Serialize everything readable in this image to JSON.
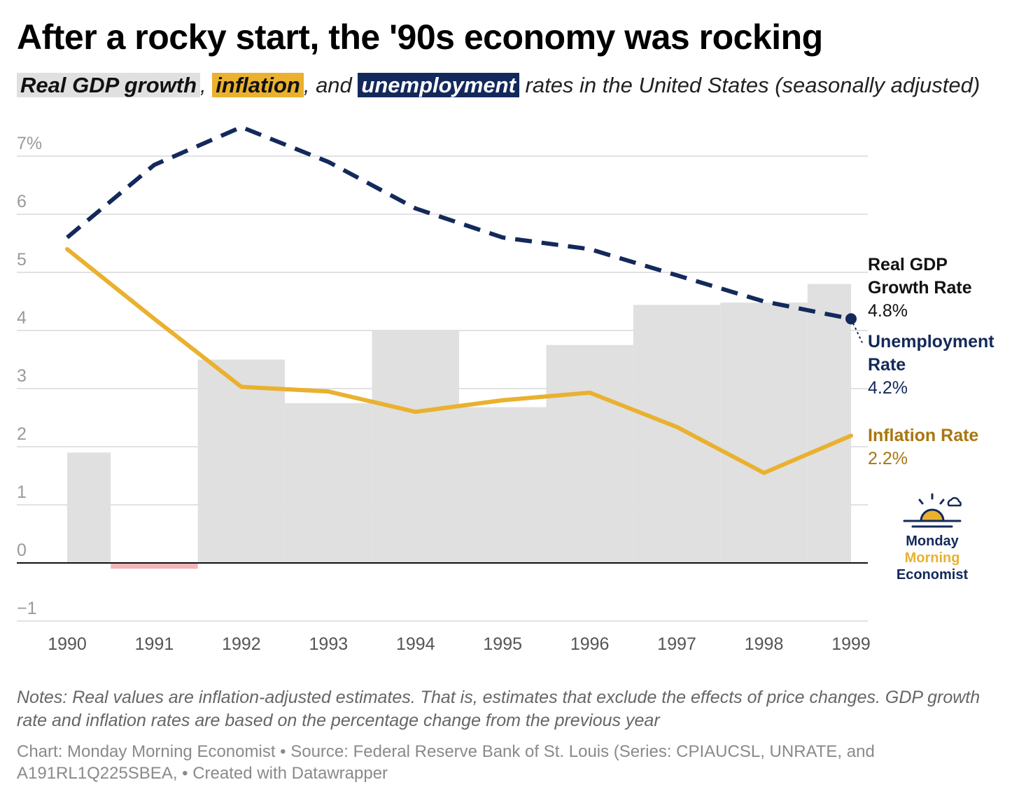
{
  "title": "After a rocky start, the '90s economy was rocking",
  "subtitle": {
    "gdp": "Real GDP growth",
    "sep1": ",",
    "inflation": "inflation",
    "sep2": ", and",
    "unemployment": "unemployment",
    "rest": "rates in the United States (seasonally adjusted)"
  },
  "colors": {
    "gdp_bar": "#e0e0e0",
    "gdp_negative": "#f0b6ba",
    "inflation": "#eab12f",
    "unemployment": "#13295b",
    "inflation_label": "#a87710"
  },
  "chart_data": {
    "type": "bar",
    "categories": [
      "1990",
      "1991",
      "1992",
      "1993",
      "1994",
      "1995",
      "1996",
      "1997",
      "1998",
      "1999"
    ],
    "y_ticks": [
      -1,
      0,
      1,
      2,
      3,
      4,
      5,
      6,
      7
    ],
    "y_tick_labels": [
      "−1",
      "0",
      "1",
      "2",
      "3",
      "4",
      "5",
      "6",
      "7%"
    ],
    "ylim": [
      -1,
      7.5
    ],
    "grid": true,
    "bars": {
      "name": "Real GDP Growth Rate",
      "segments": [
        {
          "start": 1990,
          "end": 1990.5,
          "value": 1.9
        },
        {
          "start": 1990.5,
          "end": 1991.5,
          "value": -0.1
        },
        {
          "start": 1991.5,
          "end": 1992.5,
          "value": 3.5
        },
        {
          "start": 1992.5,
          "end": 1993.5,
          "value": 2.75
        },
        {
          "start": 1993.5,
          "end": 1994.5,
          "value": 4.0
        },
        {
          "start": 1994.5,
          "end": 1995.5,
          "value": 2.68
        },
        {
          "start": 1995.5,
          "end": 1996.5,
          "value": 3.75
        },
        {
          "start": 1996.5,
          "end": 1997.5,
          "value": 4.44
        },
        {
          "start": 1997.5,
          "end": 1998.5,
          "value": 4.48
        },
        {
          "start": 1998.5,
          "end": 1999,
          "value": 4.8
        }
      ]
    },
    "series": [
      {
        "name": "Unemployment Rate",
        "style": "dashed",
        "x": [
          1990,
          1991,
          1992,
          1993,
          1994,
          1995,
          1996,
          1997,
          1998,
          1999
        ],
        "values": [
          5.6,
          6.85,
          7.5,
          6.9,
          6.1,
          5.6,
          5.4,
          4.95,
          4.5,
          4.2
        ]
      },
      {
        "name": "Inflation Rate",
        "style": "solid",
        "x": [
          1990,
          1991,
          1992,
          1993,
          1994,
          1995,
          1996,
          1997,
          1998,
          1999
        ],
        "values": [
          5.4,
          4.2,
          3.03,
          2.95,
          2.6,
          2.8,
          2.93,
          2.34,
          1.55,
          2.19
        ]
      }
    ]
  },
  "labels": {
    "gdp": {
      "name_line1": "Real GDP",
      "name_line2": "Growth Rate",
      "value": "4.8%"
    },
    "unemployment": {
      "name_line1": "Unemployment",
      "name_line2": "Rate",
      "value": "4.2%"
    },
    "inflation": {
      "name": "Inflation Rate",
      "value": "2.2%"
    }
  },
  "logo": {
    "line1": "Monday",
    "line2": "Morning",
    "line3": "Economist",
    "icon": "sunrise-icon"
  },
  "notes": "Notes: Real values are inflation-adjusted estimates. That is, estimates that exclude the effects of price changes. GDP growth rate and inflation rates are based on the percentage change from the previous year",
  "source": "Chart: Monday Morning Economist • Source: Federal Reserve Bank of St. Louis (Series: CPIAUCSL, UNRATE, and A191RL1Q225SBEA,  • Created with Datawrapper"
}
